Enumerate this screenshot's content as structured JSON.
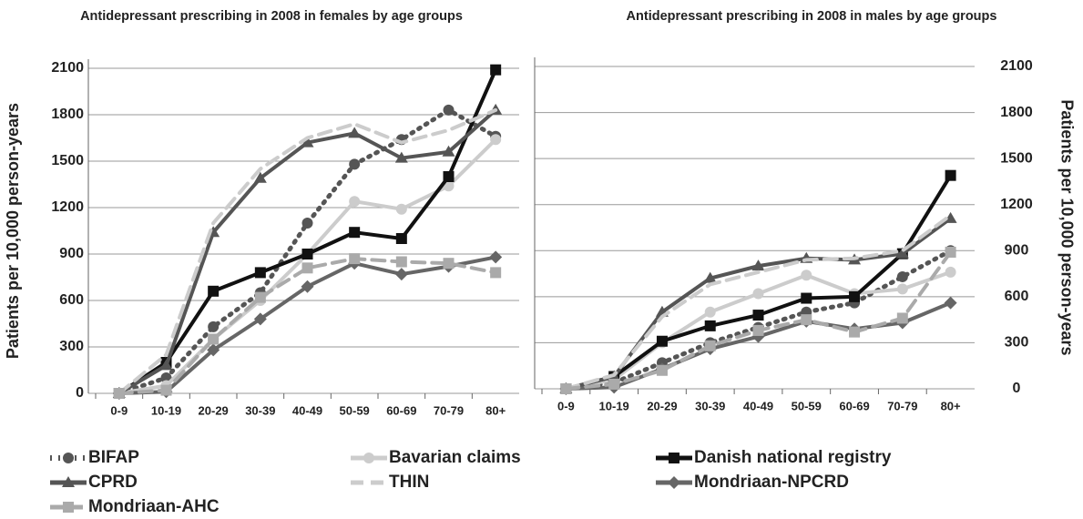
{
  "chart_data": [
    {
      "type": "line",
      "title": "Antidepressant prescribing in 2008 in females by age groups",
      "y_label": "Patients per 10,000 person-years",
      "y_axis_side": "left",
      "categories": [
        "0-9",
        "10-19",
        "20-29",
        "30-39",
        "40-49",
        "50-59",
        "60-69",
        "70-79",
        "80+"
      ],
      "ylim": [
        0,
        2100
      ],
      "yticks": [
        0,
        300,
        600,
        900,
        1200,
        1500,
        1800,
        2100
      ],
      "grid": true,
      "series": [
        {
          "name": "BIFAP",
          "color": "#555555",
          "dash": "dot",
          "marker": "circle",
          "values": [
            0,
            100,
            430,
            650,
            1100,
            1480,
            1640,
            1830,
            1660
          ]
        },
        {
          "name": "Bavarian claims",
          "color": "#cccccc",
          "dash": "solid",
          "marker": "circle",
          "values": [
            0,
            50,
            350,
            600,
            900,
            1240,
            1190,
            1340,
            1640
          ]
        },
        {
          "name": "Danish national registry",
          "color": "#111111",
          "dash": "solid",
          "marker": "square",
          "values": [
            0,
            200,
            660,
            780,
            900,
            1040,
            1000,
            1400,
            2090
          ]
        },
        {
          "name": "CPRD",
          "color": "#555555",
          "dash": "solid",
          "marker": "triangle",
          "values": [
            0,
            180,
            1040,
            1390,
            1620,
            1680,
            1520,
            1560,
            1830
          ]
        },
        {
          "name": "THIN",
          "color": "#cccccc",
          "dash": "dash",
          "marker": "none",
          "values": [
            0,
            250,
            1100,
            1450,
            1650,
            1740,
            1620,
            1700,
            1830
          ]
        },
        {
          "name": "Mondriaan-NPCRD",
          "color": "#666666",
          "dash": "solid",
          "marker": "diamond",
          "values": [
            0,
            10,
            280,
            480,
            690,
            840,
            770,
            820,
            880
          ]
        },
        {
          "name": "Mondriaan-AHC",
          "color": "#aaaaaa",
          "dash": "dash",
          "marker": "square",
          "values": [
            0,
            20,
            350,
            620,
            810,
            870,
            850,
            840,
            780
          ]
        }
      ]
    },
    {
      "type": "line",
      "title": "Antidepressant prescribing in 2008 in males by age groups",
      "y_label": "Patients per 10,000 person-years",
      "y_axis_side": "right",
      "categories": [
        "0-9",
        "10-19",
        "20-29",
        "30-39",
        "40-49",
        "50-59",
        "60-69",
        "70-79",
        "80+"
      ],
      "ylim": [
        0,
        2100
      ],
      "yticks": [
        0,
        300,
        600,
        900,
        1200,
        1500,
        1800,
        2100
      ],
      "grid": true,
      "series": [
        {
          "color": "#555555",
          "dash": "dot",
          "marker": "circle",
          "values": [
            0,
            40,
            170,
            300,
            400,
            500,
            560,
            730,
            900
          ]
        },
        {
          "color": "#cccccc",
          "dash": "solid",
          "marker": "circle",
          "values": [
            0,
            60,
            300,
            500,
            620,
            740,
            620,
            650,
            760
          ]
        },
        {
          "color": "#111111",
          "dash": "solid",
          "marker": "square",
          "values": [
            0,
            80,
            310,
            410,
            480,
            590,
            600,
            880,
            1390
          ]
        },
        {
          "color": "#555555",
          "dash": "solid",
          "marker": "triangle",
          "values": [
            0,
            80,
            500,
            720,
            800,
            850,
            840,
            880,
            1110
          ]
        },
        {
          "color": "#cccccc",
          "dash": "dash",
          "marker": "none",
          "values": [
            0,
            90,
            470,
            680,
            760,
            840,
            850,
            900,
            1130
          ]
        },
        {
          "color": "#666666",
          "dash": "solid",
          "marker": "diamond",
          "values": [
            0,
            10,
            130,
            260,
            340,
            440,
            390,
            430,
            560
          ]
        },
        {
          "color": "#aaaaaa",
          "dash": "dash",
          "marker": "square",
          "values": [
            0,
            30,
            120,
            280,
            380,
            450,
            370,
            460,
            890
          ]
        }
      ]
    }
  ]
}
